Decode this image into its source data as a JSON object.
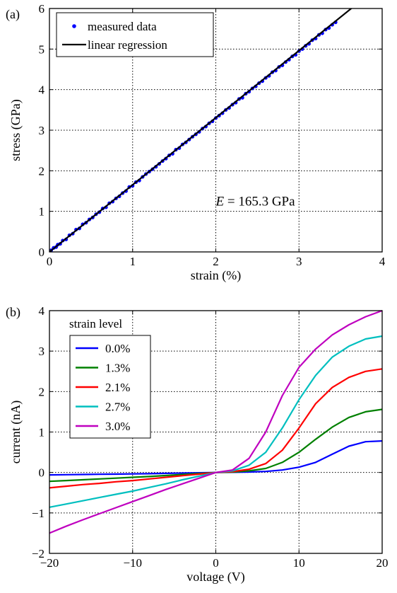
{
  "chart_data": [
    {
      "panel": "(a)",
      "type": "scatter",
      "xlabel": "strain (%)",
      "ylabel": "stress (GPa)",
      "xlim": [
        0,
        4
      ],
      "ylim": [
        0,
        6
      ],
      "xticks": [
        0,
        1,
        2,
        3,
        4
      ],
      "yticks": [
        0,
        1,
        2,
        3,
        4,
        5,
        6
      ],
      "grid": true,
      "legend_position": "top-left",
      "annotation": {
        "symbol": "E",
        "text": " = 165.3 GPa"
      },
      "series": [
        {
          "name": "measured data",
          "kind": "points",
          "color": "#0000ff",
          "x": [
            0.02,
            0.05,
            0.08,
            0.1,
            0.13,
            0.16,
            0.2,
            0.24,
            0.28,
            0.32,
            0.36,
            0.4,
            0.44,
            0.48,
            0.52,
            0.56,
            0.6,
            0.64,
            0.68,
            0.72,
            0.76,
            0.8,
            0.84,
            0.88,
            0.92,
            0.96,
            1.0,
            1.04,
            1.08,
            1.12,
            1.16,
            1.2,
            1.24,
            1.28,
            1.32,
            1.36,
            1.4,
            1.44,
            1.48,
            1.52,
            1.56,
            1.6,
            1.64,
            1.68,
            1.72,
            1.76,
            1.8,
            1.84,
            1.88,
            1.92,
            1.96,
            2.0,
            2.04,
            2.08,
            2.12,
            2.16,
            2.2,
            2.24,
            2.28,
            2.32,
            2.36,
            2.4,
            2.44,
            2.48,
            2.52,
            2.56,
            2.6,
            2.64,
            2.68,
            2.72,
            2.76,
            2.8,
            2.84,
            2.88,
            2.92,
            2.96,
            3.0,
            3.04,
            3.08,
            3.12,
            3.16,
            3.2,
            3.24,
            3.28,
            3.32,
            3.36,
            3.4,
            3.44
          ],
          "y": [
            0.04,
            0.1,
            0.12,
            0.18,
            0.2,
            0.28,
            0.31,
            0.41,
            0.45,
            0.55,
            0.58,
            0.68,
            0.72,
            0.8,
            0.85,
            0.93,
            0.98,
            1.07,
            1.1,
            1.2,
            1.24,
            1.32,
            1.37,
            1.45,
            1.5,
            1.6,
            1.63,
            1.72,
            1.76,
            1.85,
            1.92,
            1.98,
            2.04,
            2.1,
            2.17,
            2.24,
            2.3,
            2.38,
            2.42,
            2.52,
            2.56,
            2.65,
            2.7,
            2.77,
            2.84,
            2.9,
            2.96,
            3.04,
            3.09,
            3.17,
            3.22,
            3.3,
            3.36,
            3.42,
            3.5,
            3.55,
            3.63,
            3.68,
            3.77,
            3.8,
            3.9,
            3.95,
            4.03,
            4.08,
            4.16,
            4.21,
            4.29,
            4.34,
            4.43,
            4.47,
            4.56,
            4.6,
            4.68,
            4.74,
            4.82,
            4.86,
            4.95,
            5.0,
            5.08,
            5.13,
            5.22,
            5.26,
            5.35,
            5.39,
            5.48,
            5.52,
            5.6,
            5.66
          ]
        },
        {
          "name": "linear regression",
          "kind": "line",
          "color": "#000000",
          "x": [
            0,
            3.64
          ],
          "y": [
            0,
            6.02
          ]
        }
      ]
    },
    {
      "panel": "(b)",
      "type": "line",
      "xlabel": "voltage (V)",
      "ylabel": "current (nA)",
      "xlim": [
        -20,
        20
      ],
      "ylim": [
        -2,
        4
      ],
      "xticks": [
        -20,
        -10,
        0,
        10,
        20
      ],
      "yticks": [
        -2,
        -1,
        0,
        1,
        2,
        3,
        4
      ],
      "tick_labels_x": [
        "−20",
        "−10",
        "0",
        "10",
        "20"
      ],
      "tick_labels_y": [
        "−2",
        "−1",
        "0",
        "1",
        "2",
        "3",
        "4"
      ],
      "grid": true,
      "legend_title": "strain level",
      "legend_position": "top-left",
      "x": [
        -20,
        -18,
        -16,
        -14,
        -12,
        -10,
        -8,
        -6,
        -4,
        -2,
        0,
        2,
        4,
        6,
        8,
        10,
        12,
        14,
        16,
        18,
        20
      ],
      "series": [
        {
          "name": "0.0%",
          "color": "#0000ff",
          "values": [
            -0.06,
            -0.055,
            -0.05,
            -0.045,
            -0.04,
            -0.035,
            -0.03,
            -0.022,
            -0.015,
            -0.008,
            0.0,
            0.005,
            0.012,
            0.025,
            0.06,
            0.13,
            0.25,
            0.45,
            0.65,
            0.76,
            0.78
          ]
        },
        {
          "name": "1.3%",
          "color": "#008000",
          "values": [
            -0.22,
            -0.2,
            -0.18,
            -0.16,
            -0.14,
            -0.12,
            -0.1,
            -0.075,
            -0.05,
            -0.025,
            0.0,
            0.01,
            0.04,
            0.1,
            0.25,
            0.5,
            0.82,
            1.12,
            1.36,
            1.5,
            1.56
          ]
        },
        {
          "name": "2.1%",
          "color": "#ff0000",
          "values": [
            -0.38,
            -0.34,
            -0.3,
            -0.27,
            -0.23,
            -0.2,
            -0.16,
            -0.12,
            -0.08,
            -0.04,
            0.0,
            0.02,
            0.08,
            0.22,
            0.55,
            1.1,
            1.7,
            2.1,
            2.35,
            2.5,
            2.56
          ]
        },
        {
          "name": "2.7%",
          "color": "#00bfbf",
          "values": [
            -0.86,
            -0.78,
            -0.7,
            -0.62,
            -0.54,
            -0.46,
            -0.37,
            -0.28,
            -0.18,
            -0.09,
            0.0,
            0.04,
            0.18,
            0.5,
            1.1,
            1.8,
            2.4,
            2.85,
            3.12,
            3.3,
            3.37
          ]
        },
        {
          "name": "3.0%",
          "color": "#bf00bf",
          "values": [
            -1.5,
            -1.33,
            -1.17,
            -1.02,
            -0.87,
            -0.72,
            -0.57,
            -0.42,
            -0.28,
            -0.14,
            0.0,
            0.06,
            0.35,
            1.0,
            1.9,
            2.6,
            3.05,
            3.4,
            3.65,
            3.85,
            4.0
          ]
        }
      ]
    }
  ]
}
